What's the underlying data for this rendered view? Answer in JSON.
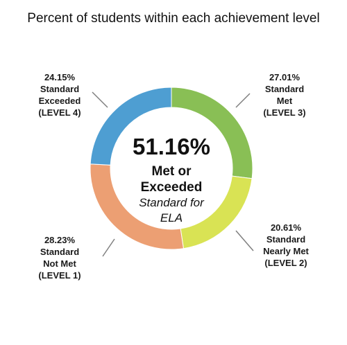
{
  "chart_data": {
    "type": "pie",
    "title": "Percent of students within each achievement level",
    "donut": true,
    "center": {
      "value": "51.16%",
      "line1": "Met or",
      "line2": "Exceeded",
      "line3": "Standard for",
      "line4": "ELA"
    },
    "slices": [
      {
        "value": 27.01,
        "color": "#89bf55",
        "label_lines": [
          "27.01%",
          "Standard",
          "Met",
          "(LEVEL 3)"
        ]
      },
      {
        "value": 20.61,
        "color": "#d9e354",
        "label_lines": [
          "20.61%",
          "Standard",
          "Nearly Met",
          "(LEVEL 2)"
        ]
      },
      {
        "value": 28.23,
        "color": "#ec9f73",
        "label_lines": [
          "28.23%",
          "Standard",
          "Not Met",
          "(LEVEL 1)"
        ]
      },
      {
        "value": 24.15,
        "color": "#4e9ed2",
        "label_lines": [
          "24.15%",
          "Standard",
          "Exceeded",
          "(LEVEL 4)"
        ]
      }
    ]
  }
}
